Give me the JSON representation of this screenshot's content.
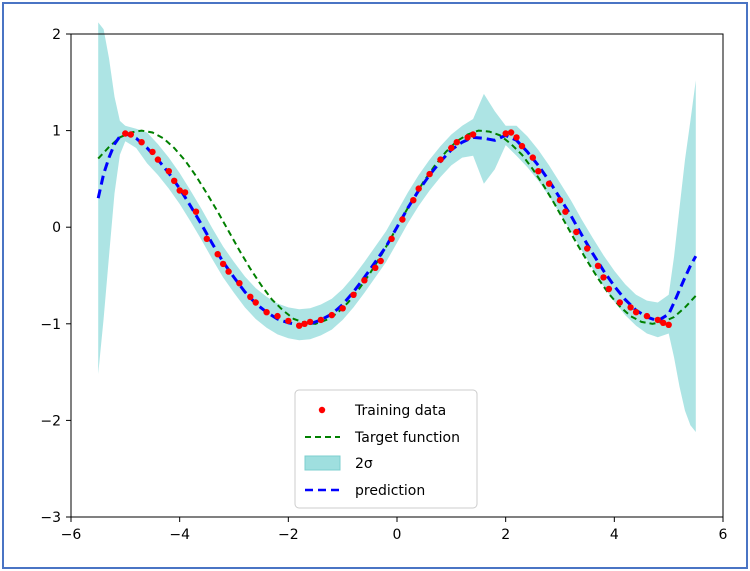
{
  "chart_data": {
    "type": "line",
    "title": "",
    "xlabel": "",
    "ylabel": "",
    "xlim": [
      -6,
      6
    ],
    "ylim": [
      -3,
      2
    ],
    "grid": false,
    "legend_placement": "lower center",
    "xticks": [
      -6,
      -4,
      -2,
      0,
      2,
      4,
      6
    ],
    "yticks": [
      -3,
      -2,
      -1,
      0,
      1,
      2
    ],
    "x_tick_labels": [
      "−6",
      "−4",
      "−2",
      "0",
      "2",
      "4",
      "6"
    ],
    "y_tick_labels": [
      "−3",
      "−2",
      "−1",
      "0",
      "1",
      "2"
    ],
    "colors": {
      "training": "#ff0000",
      "target": "#008000",
      "band": "#9fdfdf",
      "prediction": "#0000ff",
      "frame": "#4a74c4"
    },
    "series": [
      {
        "name": "Training data",
        "kind": "scatter",
        "x": [
          -5.0,
          -4.9,
          -4.7,
          -4.5,
          -4.4,
          -4.2,
          -4.1,
          -4.0,
          -3.9,
          -3.7,
          -3.5,
          -3.3,
          -3.2,
          -3.1,
          -2.9,
          -2.7,
          -2.6,
          -2.4,
          -2.2,
          -2.0,
          -1.8,
          -1.7,
          -1.6,
          -1.4,
          -1.2,
          -1.0,
          -0.8,
          -0.6,
          -0.4,
          -0.3,
          -0.1,
          0.1,
          0.3,
          0.4,
          0.6,
          0.8,
          1.0,
          1.1,
          1.3,
          1.4,
          2.0,
          2.1,
          2.2,
          2.3,
          2.5,
          2.6,
          2.8,
          3.0,
          3.1,
          3.3,
          3.5,
          3.7,
          3.8,
          3.9,
          4.1,
          4.3,
          4.4,
          4.6,
          4.8,
          4.9,
          5.0
        ],
        "y": [
          0.97,
          0.96,
          0.88,
          0.78,
          0.7,
          0.58,
          0.48,
          0.38,
          0.36,
          0.16,
          -0.12,
          -0.28,
          -0.38,
          -0.46,
          -0.58,
          -0.72,
          -0.78,
          -0.88,
          -0.92,
          -0.97,
          -1.02,
          -1.0,
          -0.98,
          -0.96,
          -0.91,
          -0.84,
          -0.7,
          -0.55,
          -0.42,
          -0.35,
          -0.12,
          0.08,
          0.28,
          0.4,
          0.55,
          0.7,
          0.82,
          0.88,
          0.93,
          0.96,
          0.97,
          0.98,
          0.93,
          0.84,
          0.72,
          0.58,
          0.45,
          0.28,
          0.16,
          -0.05,
          -0.22,
          -0.4,
          -0.52,
          -0.64,
          -0.78,
          -0.83,
          -0.88,
          -0.92,
          -0.96,
          -0.99,
          -1.01
        ]
      },
      {
        "name": "Target function",
        "kind": "line",
        "style": "dashed",
        "x": [
          -5.5,
          -5.3,
          -5.1,
          -4.9,
          -4.7,
          -4.5,
          -4.3,
          -4.1,
          -3.9,
          -3.7,
          -3.5,
          -3.3,
          -3.1,
          -2.9,
          -2.7,
          -2.5,
          -2.3,
          -2.1,
          -1.9,
          -1.7,
          -1.5,
          -1.3,
          -1.1,
          -0.9,
          -0.7,
          -0.5,
          -0.3,
          -0.1,
          0.1,
          0.3,
          0.5,
          0.7,
          0.9,
          1.1,
          1.3,
          1.5,
          1.7,
          1.9,
          2.1,
          2.3,
          2.5,
          2.7,
          2.9,
          3.1,
          3.3,
          3.5,
          3.7,
          3.9,
          4.1,
          4.3,
          4.5,
          4.7,
          4.9,
          5.1,
          5.3,
          5.5
        ],
        "y": [
          0.71,
          0.83,
          0.93,
          0.98,
          1.0,
          0.98,
          0.92,
          0.82,
          0.69,
          0.53,
          0.35,
          0.16,
          -0.04,
          -0.24,
          -0.43,
          -0.6,
          -0.75,
          -0.86,
          -0.95,
          -0.99,
          -1.0,
          -0.96,
          -0.89,
          -0.78,
          -0.64,
          -0.48,
          -0.3,
          -0.1,
          0.1,
          0.3,
          0.48,
          0.64,
          0.78,
          0.89,
          0.96,
          1.0,
          0.99,
          0.95,
          0.86,
          0.75,
          0.6,
          0.43,
          0.24,
          0.04,
          -0.16,
          -0.35,
          -0.53,
          -0.69,
          -0.82,
          -0.92,
          -0.98,
          -1.0,
          -0.98,
          -0.93,
          -0.83,
          -0.71
        ]
      },
      {
        "name": "prediction",
        "kind": "line",
        "style": "dashed",
        "x": [
          -5.5,
          -5.4,
          -5.3,
          -5.2,
          -5.1,
          -5.0,
          -4.8,
          -4.6,
          -4.4,
          -4.2,
          -4.0,
          -3.8,
          -3.6,
          -3.4,
          -3.2,
          -3.0,
          -2.8,
          -2.6,
          -2.4,
          -2.2,
          -2.0,
          -1.8,
          -1.6,
          -1.4,
          -1.2,
          -1.0,
          -0.8,
          -0.6,
          -0.4,
          -0.2,
          0.0,
          0.2,
          0.4,
          0.6,
          0.8,
          1.0,
          1.2,
          1.4,
          1.6,
          1.8,
          2.0,
          2.2,
          2.4,
          2.6,
          2.8,
          3.0,
          3.2,
          3.4,
          3.6,
          3.8,
          4.0,
          4.2,
          4.4,
          4.6,
          4.8,
          5.0,
          5.1,
          5.2,
          5.3,
          5.4,
          5.5
        ],
        "y": [
          0.3,
          0.55,
          0.72,
          0.86,
          0.94,
          0.97,
          0.92,
          0.82,
          0.7,
          0.56,
          0.4,
          0.22,
          0.03,
          -0.17,
          -0.36,
          -0.52,
          -0.67,
          -0.79,
          -0.88,
          -0.95,
          -0.99,
          -1.01,
          -1.0,
          -0.96,
          -0.9,
          -0.8,
          -0.67,
          -0.52,
          -0.36,
          -0.2,
          0.0,
          0.2,
          0.38,
          0.54,
          0.68,
          0.8,
          0.88,
          0.93,
          0.92,
          0.9,
          0.95,
          0.9,
          0.78,
          0.64,
          0.48,
          0.3,
          0.12,
          -0.08,
          -0.27,
          -0.45,
          -0.61,
          -0.75,
          -0.86,
          -0.93,
          -0.97,
          -0.9,
          -0.78,
          -0.65,
          -0.52,
          -0.4,
          -0.3
        ]
      },
      {
        "name": "2σ",
        "kind": "band",
        "x": [
          -5.5,
          -5.4,
          -5.3,
          -5.2,
          -5.1,
          -5.0,
          -4.8,
          -4.6,
          -4.4,
          -4.2,
          -4.0,
          -3.8,
          -3.6,
          -3.4,
          -3.2,
          -3.0,
          -2.8,
          -2.6,
          -2.4,
          -2.2,
          -2.0,
          -1.8,
          -1.6,
          -1.4,
          -1.2,
          -1.0,
          -0.8,
          -0.6,
          -0.4,
          -0.2,
          0.0,
          0.2,
          0.4,
          0.6,
          0.8,
          1.0,
          1.2,
          1.4,
          1.6,
          1.8,
          2.0,
          2.2,
          2.4,
          2.6,
          2.8,
          3.0,
          3.2,
          3.4,
          3.6,
          3.8,
          4.0,
          4.2,
          4.4,
          4.6,
          4.8,
          5.0,
          5.1,
          5.2,
          5.3,
          5.4,
          5.5
        ],
        "upper": [
          2.12,
          2.05,
          1.75,
          1.35,
          1.1,
          1.05,
          1.02,
          0.98,
          0.86,
          0.72,
          0.56,
          0.38,
          0.19,
          -0.01,
          -0.2,
          -0.36,
          -0.51,
          -0.63,
          -0.72,
          -0.79,
          -0.83,
          -0.85,
          -0.84,
          -0.8,
          -0.74,
          -0.64,
          -0.51,
          -0.36,
          -0.2,
          -0.04,
          0.16,
          0.36,
          0.54,
          0.7,
          0.84,
          0.96,
          1.05,
          1.12,
          1.38,
          1.2,
          1.05,
          1.05,
          0.94,
          0.8,
          0.64,
          0.46,
          0.28,
          0.08,
          -0.11,
          -0.29,
          -0.45,
          -0.59,
          -0.7,
          -0.76,
          -0.78,
          -0.7,
          -0.3,
          0.2,
          0.7,
          1.1,
          1.52
        ],
        "lower": [
          -1.52,
          -0.95,
          -0.3,
          0.35,
          0.75,
          0.89,
          0.82,
          0.66,
          0.54,
          0.4,
          0.24,
          0.06,
          -0.13,
          -0.33,
          -0.52,
          -0.68,
          -0.83,
          -0.95,
          -1.04,
          -1.11,
          -1.15,
          -1.17,
          -1.16,
          -1.12,
          -1.06,
          -0.96,
          -0.83,
          -0.68,
          -0.52,
          -0.36,
          -0.16,
          0.04,
          0.22,
          0.38,
          0.52,
          0.64,
          0.72,
          0.74,
          0.45,
          0.6,
          0.85,
          0.74,
          0.62,
          0.48,
          0.32,
          0.14,
          -0.04,
          -0.24,
          -0.43,
          -0.61,
          -0.77,
          -0.91,
          -1.02,
          -1.1,
          -1.14,
          -1.1,
          -1.35,
          -1.65,
          -1.9,
          -2.05,
          -2.12
        ]
      }
    ],
    "legend": [
      "Training data",
      "Target function",
      "2σ",
      "prediction"
    ]
  }
}
